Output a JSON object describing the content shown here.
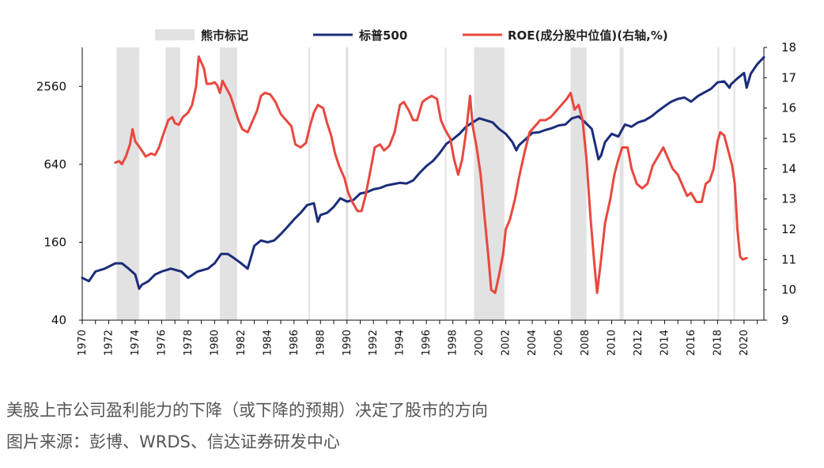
{
  "chart_data": {
    "type": "line",
    "legend": {
      "placement": "top",
      "items": [
        {
          "key": "bear",
          "label": "熊市标记",
          "color": "#e2e2e2"
        },
        {
          "key": "sp500",
          "label": "标普500",
          "color": "#1b2d7a"
        },
        {
          "key": "roe",
          "label": "ROE(成分股中位值)(右轴,%)",
          "color": "#e8483f"
        }
      ]
    },
    "x_axis": {
      "range": [
        1970,
        2021.5
      ],
      "ticks": [
        "1970",
        "1972",
        "1974",
        "1976",
        "1978",
        "1980",
        "1982",
        "1984",
        "1986",
        "1988",
        "1990",
        "1992",
        "1994",
        "1996",
        "1998",
        "2000",
        "2002",
        "2004",
        "2006",
        "2008",
        "2010",
        "2012",
        "2014",
        "2016",
        "2018",
        "2020"
      ]
    },
    "y_left": {
      "scale": "log",
      "range": [
        40,
        5120
      ],
      "ticks": [
        "40",
        "160",
        "640",
        "2560"
      ]
    },
    "y_right": {
      "scale": "linear",
      "range": [
        9,
        18
      ],
      "ticks": [
        "9",
        "10",
        "11",
        "12",
        "13",
        "14",
        "15",
        "16",
        "17",
        "18"
      ]
    },
    "bear_markets": [
      [
        1972.6,
        1974.3
      ],
      [
        1976.3,
        1977.4
      ],
      [
        1980.4,
        1981.7
      ],
      [
        1987.1,
        1987.2
      ],
      [
        1989.9,
        1990.1
      ],
      [
        1997.4,
        1997.5
      ],
      [
        1999.6,
        2001.9
      ],
      [
        2006.9,
        2008.1
      ],
      [
        2010.6,
        2010.9
      ],
      [
        2018.0,
        2018.1
      ],
      [
        2019.2,
        2019.3
      ]
    ],
    "series": [
      {
        "name": "标普500",
        "axis": "left",
        "color": "#1b2d7a",
        "points": [
          [
            1970.0,
            85
          ],
          [
            1970.5,
            80
          ],
          [
            1971.0,
            95
          ],
          [
            1971.7,
            100
          ],
          [
            1972.5,
            110
          ],
          [
            1973.0,
            110
          ],
          [
            1973.5,
            100
          ],
          [
            1974.0,
            90
          ],
          [
            1974.3,
            70
          ],
          [
            1974.5,
            75
          ],
          [
            1975.0,
            80
          ],
          [
            1975.5,
            90
          ],
          [
            1976.0,
            95
          ],
          [
            1976.7,
            100
          ],
          [
            1977.5,
            95
          ],
          [
            1978.0,
            85
          ],
          [
            1978.7,
            95
          ],
          [
            1979.5,
            100
          ],
          [
            1980.0,
            110
          ],
          [
            1980.5,
            130
          ],
          [
            1981.0,
            130
          ],
          [
            1981.5,
            120
          ],
          [
            1982.0,
            110
          ],
          [
            1982.5,
            100
          ],
          [
            1983.0,
            150
          ],
          [
            1983.5,
            165
          ],
          [
            1984.0,
            160
          ],
          [
            1984.5,
            165
          ],
          [
            1985.0,
            185
          ],
          [
            1985.5,
            210
          ],
          [
            1986.0,
            240
          ],
          [
            1986.5,
            270
          ],
          [
            1987.0,
            310
          ],
          [
            1987.5,
            320
          ],
          [
            1987.8,
            230
          ],
          [
            1988.0,
            260
          ],
          [
            1988.5,
            270
          ],
          [
            1989.0,
            300
          ],
          [
            1989.5,
            350
          ],
          [
            1990.0,
            330
          ],
          [
            1990.5,
            340
          ],
          [
            1991.0,
            380
          ],
          [
            1991.5,
            390
          ],
          [
            1992.0,
            410
          ],
          [
            1992.5,
            420
          ],
          [
            1993.0,
            440
          ],
          [
            1993.5,
            450
          ],
          [
            1994.0,
            460
          ],
          [
            1994.5,
            455
          ],
          [
            1995.0,
            480
          ],
          [
            1995.5,
            550
          ],
          [
            1996.0,
            620
          ],
          [
            1996.5,
            680
          ],
          [
            1997.0,
            780
          ],
          [
            1997.5,
            920
          ],
          [
            1998.0,
            1000
          ],
          [
            1998.5,
            1100
          ],
          [
            1999.0,
            1250
          ],
          [
            1999.5,
            1350
          ],
          [
            2000.0,
            1450
          ],
          [
            2000.5,
            1400
          ],
          [
            2001.0,
            1350
          ],
          [
            2001.5,
            1200
          ],
          [
            2002.0,
            1100
          ],
          [
            2002.5,
            950
          ],
          [
            2002.8,
            820
          ],
          [
            2003.0,
            900
          ],
          [
            2003.5,
            1000
          ],
          [
            2004.0,
            1120
          ],
          [
            2004.5,
            1130
          ],
          [
            2005.0,
            1180
          ],
          [
            2005.5,
            1220
          ],
          [
            2006.0,
            1280
          ],
          [
            2006.5,
            1300
          ],
          [
            2007.0,
            1450
          ],
          [
            2007.5,
            1500
          ],
          [
            2008.0,
            1350
          ],
          [
            2008.5,
            1200
          ],
          [
            2009.0,
            700
          ],
          [
            2009.2,
            750
          ],
          [
            2009.5,
            950
          ],
          [
            2010.0,
            1100
          ],
          [
            2010.5,
            1050
          ],
          [
            2011.0,
            1300
          ],
          [
            2011.5,
            1250
          ],
          [
            2012.0,
            1350
          ],
          [
            2012.5,
            1400
          ],
          [
            2013.0,
            1500
          ],
          [
            2013.5,
            1650
          ],
          [
            2014.0,
            1800
          ],
          [
            2014.5,
            1950
          ],
          [
            2015.0,
            2050
          ],
          [
            2015.5,
            2100
          ],
          [
            2016.0,
            1950
          ],
          [
            2016.5,
            2150
          ],
          [
            2017.0,
            2300
          ],
          [
            2017.5,
            2450
          ],
          [
            2018.0,
            2750
          ],
          [
            2018.5,
            2800
          ],
          [
            2018.9,
            2500
          ],
          [
            2019.0,
            2650
          ],
          [
            2019.5,
            2950
          ],
          [
            2020.0,
            3250
          ],
          [
            2020.2,
            2500
          ],
          [
            2020.5,
            3200
          ],
          [
            2021.0,
            3800
          ],
          [
            2021.5,
            4300
          ]
        ]
      },
      {
        "name": "ROE(成分股中位值)(右轴,%)",
        "axis": "right",
        "color": "#e8483f",
        "points": [
          [
            1972.5,
            14.2
          ],
          [
            1972.8,
            14.25
          ],
          [
            1973.0,
            14.15
          ],
          [
            1973.3,
            14.4
          ],
          [
            1973.6,
            14.8
          ],
          [
            1973.8,
            15.3
          ],
          [
            1974.0,
            14.9
          ],
          [
            1974.5,
            14.6
          ],
          [
            1974.8,
            14.4
          ],
          [
            1975.2,
            14.5
          ],
          [
            1975.5,
            14.45
          ],
          [
            1975.8,
            14.7
          ],
          [
            1976.1,
            15.1
          ],
          [
            1976.5,
            15.6
          ],
          [
            1976.8,
            15.7
          ],
          [
            1977.0,
            15.5
          ],
          [
            1977.3,
            15.45
          ],
          [
            1977.6,
            15.7
          ],
          [
            1978.0,
            15.85
          ],
          [
            1978.3,
            16.1
          ],
          [
            1978.6,
            16.7
          ],
          [
            1978.8,
            17.7
          ],
          [
            1979.0,
            17.5
          ],
          [
            1979.2,
            17.3
          ],
          [
            1979.4,
            16.8
          ],
          [
            1979.7,
            16.8
          ],
          [
            1980.0,
            16.85
          ],
          [
            1980.2,
            16.75
          ],
          [
            1980.4,
            16.5
          ],
          [
            1980.6,
            16.9
          ],
          [
            1980.9,
            16.65
          ],
          [
            1981.2,
            16.4
          ],
          [
            1981.5,
            16.0
          ],
          [
            1981.8,
            15.6
          ],
          [
            1982.1,
            15.3
          ],
          [
            1982.5,
            15.2
          ],
          [
            1982.8,
            15.5
          ],
          [
            1983.2,
            15.9
          ],
          [
            1983.5,
            16.4
          ],
          [
            1983.8,
            16.5
          ],
          [
            1984.2,
            16.45
          ],
          [
            1984.6,
            16.2
          ],
          [
            1985.0,
            15.8
          ],
          [
            1985.4,
            15.6
          ],
          [
            1985.8,
            15.4
          ],
          [
            1986.1,
            14.8
          ],
          [
            1986.5,
            14.7
          ],
          [
            1986.9,
            14.85
          ],
          [
            1987.2,
            15.4
          ],
          [
            1987.5,
            15.85
          ],
          [
            1987.8,
            16.1
          ],
          [
            1988.2,
            16.0
          ],
          [
            1988.5,
            15.5
          ],
          [
            1988.8,
            15.1
          ],
          [
            1989.1,
            14.5
          ],
          [
            1989.4,
            14.1
          ],
          [
            1989.8,
            13.7
          ],
          [
            1990.1,
            13.2
          ],
          [
            1990.4,
            12.9
          ],
          [
            1990.8,
            12.6
          ],
          [
            1991.1,
            12.6
          ],
          [
            1991.4,
            13.1
          ],
          [
            1991.8,
            14.0
          ],
          [
            1992.1,
            14.7
          ],
          [
            1992.5,
            14.8
          ],
          [
            1992.8,
            14.6
          ],
          [
            1993.2,
            14.75
          ],
          [
            1993.6,
            15.2
          ],
          [
            1994.0,
            16.1
          ],
          [
            1994.3,
            16.2
          ],
          [
            1994.7,
            15.9
          ],
          [
            1995.0,
            15.6
          ],
          [
            1995.3,
            15.6
          ],
          [
            1995.7,
            16.2
          ],
          [
            1996.0,
            16.3
          ],
          [
            1996.4,
            16.4
          ],
          [
            1996.8,
            16.3
          ],
          [
            1997.1,
            15.6
          ],
          [
            1997.4,
            15.3
          ],
          [
            1997.8,
            15.0
          ],
          [
            1998.1,
            14.3
          ],
          [
            1998.4,
            13.8
          ],
          [
            1998.7,
            14.3
          ],
          [
            1999.0,
            15.2
          ],
          [
            1999.3,
            16.4
          ],
          [
            1999.5,
            15.4
          ],
          [
            1999.8,
            14.7
          ],
          [
            2000.1,
            13.8
          ],
          [
            2000.4,
            12.4
          ],
          [
            2000.7,
            11.0
          ],
          [
            2000.9,
            10.0
          ],
          [
            2001.2,
            9.9
          ],
          [
            2001.5,
            10.5
          ],
          [
            2001.8,
            11.2
          ],
          [
            2002.0,
            12.0
          ],
          [
            2002.3,
            12.3
          ],
          [
            2002.7,
            13.0
          ],
          [
            2003.0,
            13.7
          ],
          [
            2003.4,
            14.5
          ],
          [
            2003.8,
            15.2
          ],
          [
            2004.2,
            15.4
          ],
          [
            2004.6,
            15.6
          ],
          [
            2005.0,
            15.6
          ],
          [
            2005.4,
            15.7
          ],
          [
            2005.8,
            15.9
          ],
          [
            2006.2,
            16.1
          ],
          [
            2006.6,
            16.3
          ],
          [
            2006.9,
            16.5
          ],
          [
            2007.2,
            15.95
          ],
          [
            2007.5,
            16.1
          ],
          [
            2007.8,
            15.6
          ],
          [
            2008.1,
            14.3
          ],
          [
            2008.4,
            12.4
          ],
          [
            2008.7,
            10.8
          ],
          [
            2008.9,
            9.9
          ],
          [
            2009.2,
            11.0
          ],
          [
            2009.5,
            12.2
          ],
          [
            2009.9,
            13.0
          ],
          [
            2010.2,
            13.8
          ],
          [
            2010.5,
            14.3
          ],
          [
            2010.8,
            14.7
          ],
          [
            2011.2,
            14.7
          ],
          [
            2011.5,
            14.0
          ],
          [
            2011.9,
            13.5
          ],
          [
            2012.3,
            13.35
          ],
          [
            2012.7,
            13.5
          ],
          [
            2013.1,
            14.1
          ],
          [
            2013.5,
            14.4
          ],
          [
            2013.9,
            14.7
          ],
          [
            2014.2,
            14.4
          ],
          [
            2014.6,
            14.0
          ],
          [
            2015.0,
            13.8
          ],
          [
            2015.3,
            13.5
          ],
          [
            2015.7,
            13.1
          ],
          [
            2016.0,
            13.2
          ],
          [
            2016.4,
            12.9
          ],
          [
            2016.8,
            12.9
          ],
          [
            2017.1,
            13.5
          ],
          [
            2017.4,
            13.6
          ],
          [
            2017.7,
            14.0
          ],
          [
            2018.0,
            14.9
          ],
          [
            2018.2,
            15.2
          ],
          [
            2018.5,
            15.1
          ],
          [
            2018.8,
            14.6
          ],
          [
            2019.1,
            14.1
          ],
          [
            2019.3,
            13.5
          ],
          [
            2019.5,
            12.0
          ],
          [
            2019.7,
            11.1
          ],
          [
            2019.9,
            11.0
          ],
          [
            2020.2,
            11.05
          ]
        ]
      }
    ]
  },
  "caption": {
    "line1": "美股上市公司盈利能力的下降（或下降的预期）决定了股市的方向",
    "line2": "图片来源：彭博、WRDS、信达证券研发中心"
  }
}
